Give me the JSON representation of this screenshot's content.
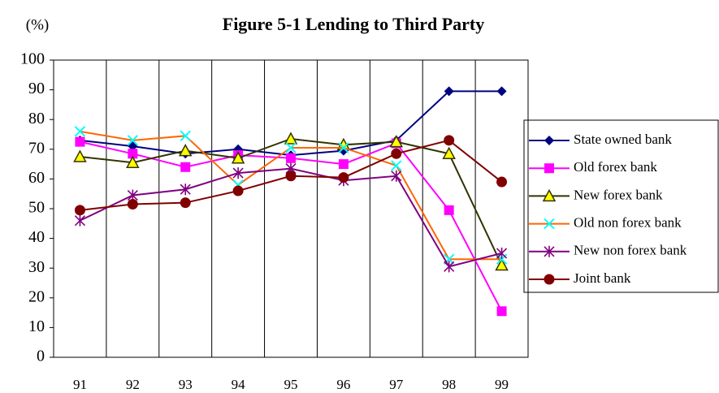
{
  "chart_data": {
    "type": "line",
    "title": "Figure 5-1 Lending to Third Party",
    "unit_label": "(%)",
    "categories": [
      "91",
      "92",
      "93",
      "94",
      "95",
      "96",
      "97",
      "98",
      "99"
    ],
    "ylim": [
      0,
      100
    ],
    "yticks": [
      0,
      10,
      20,
      30,
      40,
      50,
      60,
      70,
      80,
      90,
      100
    ],
    "vertical_grid": true,
    "legend": "right",
    "series": [
      {
        "name": "State owned bank",
        "color": "#000080",
        "marker": "diamond",
        "marker_color": "#000080",
        "values": [
          73,
          71,
          68.5,
          70,
          68,
          69.5,
          73,
          89.5,
          89.5
        ]
      },
      {
        "name": "Old forex bank",
        "color": "#ff00ff",
        "marker": "square",
        "marker_color": "#ff00ff",
        "values": [
          72.5,
          68.5,
          64,
          68,
          67,
          65,
          72,
          49.5,
          15.5
        ]
      },
      {
        "name": "New forex bank",
        "color": "#333300",
        "marker": "triangle",
        "marker_color": "#ffff00",
        "values": [
          67.5,
          65.5,
          69.5,
          67,
          73.5,
          71.5,
          72.5,
          68.5,
          31
        ]
      },
      {
        "name": "Old non forex bank",
        "color": "#ff6600",
        "marker": "x",
        "marker_color": "#00ffff",
        "values": [
          76,
          73,
          74.5,
          58,
          70.5,
          70.5,
          64.5,
          33,
          33
        ]
      },
      {
        "name": "New non forex bank",
        "color": "#800080",
        "marker": "star",
        "marker_color": "#800080",
        "values": [
          46,
          54.5,
          56.5,
          62,
          63.5,
          59.5,
          61,
          30.5,
          35
        ]
      },
      {
        "name": "Joint bank",
        "color": "#800000",
        "marker": "circle",
        "marker_color": "#800000",
        "values": [
          49.5,
          51.5,
          52,
          56,
          61,
          60.5,
          68.5,
          73,
          59
        ]
      }
    ]
  }
}
